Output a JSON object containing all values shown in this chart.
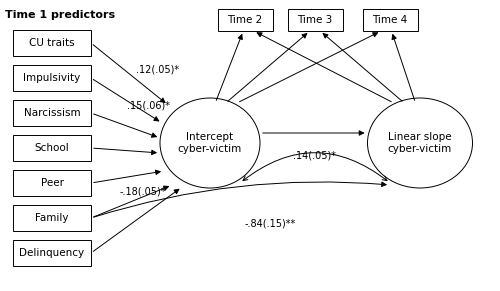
{
  "title": "Time 1 predictors",
  "left_boxes": [
    "CU traits",
    "Impulsivity",
    "Narcissism",
    "School",
    "Peer",
    "Family",
    "Delinquency"
  ],
  "top_boxes": [
    "Time 2",
    "Time 3",
    "Time 4"
  ],
  "center_ellipse": "Intercept\ncyber-victim",
  "right_ellipse": "Linear slope\ncyber-victim",
  "arrow_labels": {
    "cu_to_intercept": ".12(.05)*",
    "narcissism_to_intercept": ".15(.06)*",
    "family_to_intercept": "-.18(.05)*",
    "intercept_to_slope": ".14(.05)*",
    "family_to_slope": "-.84(.15)**"
  },
  "bg_color": "#ffffff",
  "box_color": "#ffffff",
  "box_edge": "#000000",
  "text_color": "#000000"
}
